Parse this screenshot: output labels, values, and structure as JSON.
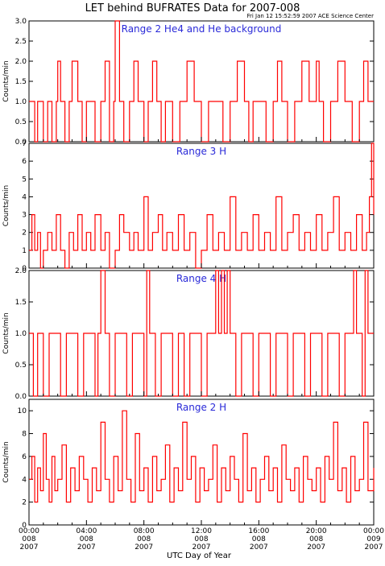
{
  "header": {
    "title": "LET behind BUFRATES Data for 2007-008",
    "timestamp": "Fri Jan 12 15:52:59 2007 ACE Science Center"
  },
  "x_axis": {
    "label": "UTC Day of Year",
    "ticks": [
      {
        "time": "00:00",
        "doy": "008",
        "year": "2007"
      },
      {
        "time": "04:00",
        "doy": "008",
        "year": "2007"
      },
      {
        "time": "08:00",
        "doy": "008",
        "year": "2007"
      },
      {
        "time": "12:00",
        "doy": "008",
        "year": "2007"
      },
      {
        "time": "16:00",
        "doy": "008",
        "year": "2007"
      },
      {
        "time": "20:00",
        "doy": "008",
        "year": "2007"
      },
      {
        "time": "00:00",
        "doy": "009",
        "year": "2007"
      }
    ]
  },
  "colors": {
    "series": "#ff0000",
    "panel_title": "#2a2ad8",
    "axis": "#000000"
  },
  "chart_data": [
    {
      "type": "line",
      "title": "Range 2 He4 and He background",
      "ylabel": "Counts/min",
      "ylim": [
        0,
        3
      ],
      "yticks": [
        "0.0",
        "0.5",
        "1.0",
        "1.5",
        "2.0",
        "2.5",
        "3.0"
      ],
      "xlim_hours": [
        0,
        24
      ],
      "series": [
        {
          "color": "#ff0000",
          "x_hours": [
            0.0,
            0.2,
            0.4,
            0.6,
            0.8,
            1.0,
            1.3,
            1.6,
            1.9,
            2.0,
            2.2,
            2.5,
            2.8,
            3.0,
            3.4,
            3.7,
            4.0,
            4.3,
            4.6,
            5.0,
            5.3,
            5.6,
            5.9,
            6.0,
            6.3,
            6.6,
            7.0,
            7.3,
            7.6,
            8.0,
            8.3,
            8.6,
            8.9,
            9.2,
            9.5,
            9.8,
            10.0,
            10.5,
            11.0,
            11.5,
            12.0,
            12.5,
            13.0,
            13.5,
            14.0,
            14.5,
            15.0,
            15.3,
            15.6,
            16.0,
            16.5,
            17.0,
            17.3,
            17.6,
            18.0,
            18.5,
            19.0,
            19.5,
            20.0,
            20.2,
            20.5,
            21.0,
            21.5,
            22.0,
            22.5,
            23.0,
            23.3,
            23.6,
            24.0
          ],
          "y": [
            1,
            1,
            0,
            1,
            1,
            0,
            1,
            0,
            1,
            2,
            1,
            0,
            1,
            2,
            1,
            0,
            1,
            1,
            0,
            1,
            2,
            0,
            1,
            3,
            1,
            0,
            1,
            2,
            1,
            0,
            1,
            2,
            1,
            0,
            1,
            1,
            0,
            1,
            2,
            1,
            0,
            1,
            1,
            0,
            1,
            2,
            1,
            0,
            1,
            1,
            0,
            1,
            2,
            1,
            0,
            1,
            2,
            1,
            2,
            1,
            0,
            1,
            2,
            1,
            0,
            1,
            2,
            1,
            1
          ]
        }
      ]
    },
    {
      "type": "line",
      "title": "Range 3 H",
      "ylabel": "Counts/min",
      "ylim": [
        0,
        7
      ],
      "yticks": [
        "0",
        "1",
        "2",
        "3",
        "4",
        "5",
        "6",
        "7"
      ],
      "xlim_hours": [
        0,
        24
      ],
      "series": [
        {
          "color": "#ff0000",
          "x_hours": [
            0.0,
            0.2,
            0.4,
            0.6,
            0.8,
            1.0,
            1.3,
            1.6,
            1.9,
            2.2,
            2.5,
            2.8,
            3.1,
            3.4,
            3.7,
            4.0,
            4.3,
            4.6,
            5.0,
            5.3,
            5.6,
            6.0,
            6.3,
            6.6,
            7.0,
            7.3,
            7.6,
            8.0,
            8.3,
            8.6,
            9.0,
            9.3,
            9.6,
            10.0,
            10.4,
            10.8,
            11.2,
            11.6,
            12.0,
            12.4,
            12.8,
            13.2,
            13.6,
            14.0,
            14.4,
            14.8,
            15.2,
            15.6,
            16.0,
            16.4,
            16.8,
            17.2,
            17.6,
            18.0,
            18.4,
            18.8,
            19.2,
            19.6,
            20.0,
            20.4,
            20.8,
            21.2,
            21.6,
            22.0,
            22.4,
            22.8,
            23.2,
            23.5,
            23.7,
            23.85,
            24.0
          ],
          "y": [
            1,
            3,
            1,
            2,
            0,
            1,
            2,
            1,
            3,
            1,
            0,
            2,
            1,
            3,
            1,
            2,
            1,
            3,
            1,
            2,
            0,
            1,
            3,
            2,
            1,
            2,
            1,
            4,
            1,
            2,
            3,
            1,
            2,
            1,
            3,
            1,
            2,
            0,
            1,
            3,
            1,
            2,
            1,
            4,
            1,
            2,
            1,
            3,
            1,
            2,
            1,
            4,
            1,
            2,
            3,
            1,
            2,
            1,
            3,
            1,
            2,
            4,
            1,
            2,
            1,
            3,
            1,
            2,
            4,
            7,
            3
          ]
        }
      ]
    },
    {
      "type": "line",
      "title": "Range 4 H",
      "ylabel": "Counts/min",
      "ylim": [
        0,
        2
      ],
      "yticks": [
        "0.0",
        "0.5",
        "1.0",
        "1.5",
        "2.0"
      ],
      "xlim_hours": [
        0,
        24
      ],
      "series": [
        {
          "color": "#ff0000",
          "x_hours": [
            0.0,
            0.3,
            0.6,
            1.0,
            1.4,
            1.8,
            2.2,
            2.6,
            3.0,
            3.4,
            3.8,
            4.2,
            4.6,
            4.8,
            5.0,
            5.3,
            5.6,
            6.0,
            6.4,
            6.8,
            7.2,
            7.6,
            8.0,
            8.2,
            8.4,
            8.8,
            9.2,
            9.6,
            10.0,
            10.4,
            10.8,
            11.2,
            11.6,
            12.0,
            12.4,
            12.8,
            13.0,
            13.2,
            13.4,
            13.6,
            13.8,
            14.0,
            14.4,
            14.8,
            15.2,
            15.6,
            16.0,
            16.4,
            16.8,
            17.2,
            17.6,
            18.0,
            18.4,
            18.8,
            19.2,
            19.6,
            20.0,
            20.4,
            20.8,
            21.2,
            21.6,
            22.0,
            22.4,
            22.6,
            22.8,
            23.2,
            23.4,
            23.6,
            24.0
          ],
          "y": [
            1,
            0,
            1,
            0,
            1,
            1,
            0,
            1,
            1,
            0,
            1,
            1,
            0,
            1,
            2,
            1,
            0,
            1,
            1,
            0,
            1,
            1,
            0,
            2,
            1,
            0,
            1,
            1,
            0,
            1,
            0,
            1,
            1,
            0,
            1,
            1,
            2,
            1,
            2,
            1,
            2,
            1,
            0,
            1,
            1,
            0,
            1,
            1,
            0,
            1,
            1,
            0,
            1,
            1,
            0,
            1,
            1,
            0,
            1,
            1,
            0,
            1,
            1,
            2,
            1,
            0,
            2,
            1,
            1
          ]
        }
      ]
    },
    {
      "type": "line",
      "title": "Range 2 H",
      "ylabel": "Counts/min",
      "ylim": [
        0,
        11
      ],
      "yticks": [
        "0",
        "2",
        "4",
        "6",
        "8",
        "10"
      ],
      "xlim_hours": [
        0,
        24
      ],
      "series": [
        {
          "color": "#ff0000",
          "x_hours": [
            0.0,
            0.2,
            0.4,
            0.6,
            0.8,
            1.0,
            1.2,
            1.4,
            1.6,
            1.8,
            2.0,
            2.3,
            2.6,
            2.9,
            3.2,
            3.5,
            3.8,
            4.1,
            4.4,
            4.7,
            5.0,
            5.3,
            5.6,
            5.9,
            6.2,
            6.5,
            6.8,
            7.1,
            7.4,
            7.7,
            8.0,
            8.3,
            8.6,
            8.9,
            9.2,
            9.5,
            9.8,
            10.1,
            10.4,
            10.7,
            11.0,
            11.3,
            11.6,
            11.9,
            12.2,
            12.5,
            12.8,
            13.1,
            13.4,
            13.7,
            14.0,
            14.3,
            14.6,
            14.9,
            15.2,
            15.5,
            15.8,
            16.1,
            16.4,
            16.7,
            17.0,
            17.3,
            17.6,
            17.9,
            18.2,
            18.5,
            18.8,
            19.1,
            19.4,
            19.7,
            20.0,
            20.3,
            20.6,
            20.9,
            21.2,
            21.5,
            21.8,
            22.1,
            22.4,
            22.7,
            23.0,
            23.3,
            23.6,
            24.0
          ],
          "y": [
            4,
            6,
            2,
            5,
            3,
            8,
            4,
            2,
            6,
            3,
            4,
            7,
            2,
            5,
            3,
            6,
            4,
            2,
            5,
            3,
            9,
            4,
            2,
            6,
            3,
            10,
            4,
            2,
            8,
            3,
            5,
            2,
            6,
            3,
            4,
            7,
            2,
            5,
            3,
            9,
            4,
            6,
            2,
            5,
            3,
            4,
            7,
            2,
            5,
            3,
            6,
            4,
            2,
            8,
            3,
            5,
            2,
            4,
            6,
            3,
            5,
            2,
            7,
            4,
            3,
            5,
            2,
            6,
            4,
            3,
            5,
            2,
            6,
            4,
            9,
            3,
            5,
            2,
            6,
            3,
            4,
            9,
            3,
            5
          ]
        }
      ]
    }
  ]
}
